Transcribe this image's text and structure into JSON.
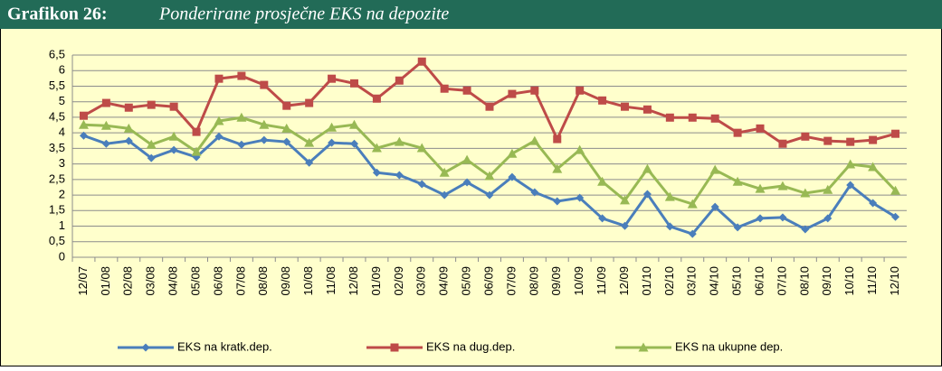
{
  "chart_data": {
    "type": "line",
    "title": "Grafikon 26:",
    "subtitle": "Ponderirane prosječne EKS na depozite",
    "categories": [
      "12/07",
      "01/08",
      "02/08",
      "03/08",
      "04/08",
      "05/08",
      "06/08",
      "07/08",
      "08/08",
      "09/08",
      "10/08",
      "11/08",
      "12/08",
      "01/09",
      "02/09",
      "03/09",
      "04/09",
      "05/09",
      "06/09",
      "07/09",
      "08/09",
      "09/09",
      "10/09",
      "11/09",
      "12/09",
      "01/10",
      "02/10",
      "03/10",
      "04/10",
      "05/10",
      "06/10",
      "07/10",
      "08/10",
      "09/10",
      "10/10",
      "11/10",
      "12/10"
    ],
    "series": [
      {
        "name": "EKS na kratk.dep.",
        "color": "#4a7ebb",
        "marker": "diamond",
        "values": [
          3.91,
          3.65,
          3.74,
          3.19,
          3.45,
          3.22,
          3.88,
          3.62,
          3.77,
          3.71,
          3.04,
          3.68,
          3.65,
          2.72,
          2.64,
          2.35,
          2.0,
          2.41,
          2.0,
          2.58,
          2.09,
          1.8,
          1.91,
          1.25,
          1.01,
          2.03,
          0.99,
          0.75,
          1.62,
          0.96,
          1.25,
          1.28,
          0.9,
          1.25,
          2.32,
          1.74,
          1.3
        ]
      },
      {
        "name": "EKS na dug.dep.",
        "color": "#be4b48",
        "marker": "square",
        "values": [
          4.55,
          4.96,
          4.81,
          4.9,
          4.84,
          4.03,
          5.74,
          5.83,
          5.54,
          4.87,
          4.96,
          5.74,
          5.59,
          5.1,
          5.68,
          6.29,
          5.42,
          5.36,
          4.84,
          5.25,
          5.36,
          3.8,
          5.36,
          5.04,
          4.84,
          4.75,
          4.49,
          4.49,
          4.46,
          4.0,
          4.14,
          3.65,
          3.88,
          3.74,
          3.71,
          3.77,
          3.97
        ]
      },
      {
        "name": "EKS na ukupne dep.",
        "color": "#98b954",
        "marker": "triangle",
        "values": [
          4.26,
          4.23,
          4.14,
          3.62,
          3.88,
          3.39,
          4.38,
          4.49,
          4.26,
          4.14,
          3.68,
          4.17,
          4.26,
          3.51,
          3.71,
          3.51,
          2.72,
          3.13,
          2.61,
          3.33,
          3.74,
          2.84,
          3.45,
          2.43,
          1.83,
          2.84,
          1.94,
          1.71,
          2.81,
          2.43,
          2.2,
          2.29,
          2.06,
          2.17,
          2.99,
          2.9,
          2.14
        ]
      }
    ],
    "ylim": [
      0,
      6.5
    ],
    "yticks": [
      0,
      {
        "value": 0.5,
        "label": "0,5"
      },
      1,
      {
        "value": 1.5,
        "label": "1,5"
      },
      2,
      {
        "value": 2.5,
        "label": "2,5"
      },
      3,
      {
        "value": 3.5,
        "label": "3,5"
      },
      4,
      {
        "value": 4.5,
        "label": "4,5"
      },
      5,
      {
        "value": 5.5,
        "label": "5,5"
      },
      6,
      {
        "value": 6.5,
        "label": "6,5"
      }
    ],
    "grid": true,
    "legend": "bottom"
  }
}
